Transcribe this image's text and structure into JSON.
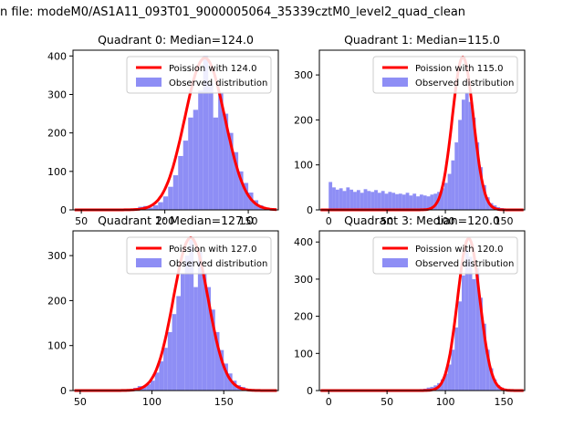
{
  "figure": {
    "title": "n file: modeM0/AS1A11_093T01_9000005064_35339cztM0_level2_quad_clean"
  },
  "colors": {
    "hist": "#8e8ef5",
    "curve": "#ff0000",
    "legend_border": "#cccccc",
    "axes": "#000000"
  },
  "chart_data": [
    {
      "type": "histogram",
      "title": "Quadrant 0: Median=124.0",
      "median": 124.0,
      "legend": [
        "Poission with 124.0",
        "Observed distribution"
      ],
      "xlim": [
        45,
        168
      ],
      "ylim": [
        0,
        415
      ],
      "xticks": [
        50,
        100,
        150
      ],
      "yticks": [
        0,
        100,
        200,
        300,
        400
      ],
      "bins_start": 57,
      "bin_width": 3,
      "counts": [
        0,
        2,
        0,
        2,
        1,
        2,
        3,
        2,
        4,
        8,
        10,
        6,
        12,
        20,
        35,
        60,
        90,
        140,
        180,
        240,
        260,
        310,
        400,
        330,
        240,
        305,
        250,
        200,
        150,
        100,
        70,
        45,
        25,
        12,
        6,
        3
      ],
      "curve": {
        "mean": 124,
        "amplitude": 395,
        "sigma": 12
      }
    },
    {
      "type": "histogram",
      "title": "Quadrant 1: Median=115.0",
      "median": 115.0,
      "legend": [
        "Poission with 115.0",
        "Observed distribution"
      ],
      "xlim": [
        -8,
        168
      ],
      "ylim": [
        0,
        355
      ],
      "xticks": [
        0,
        50,
        100,
        150
      ],
      "yticks": [
        0,
        100,
        200,
        300
      ],
      "bins_start": 0,
      "bin_width": 3,
      "counts": [
        62,
        50,
        45,
        48,
        42,
        50,
        45,
        40,
        44,
        38,
        46,
        42,
        40,
        44,
        38,
        42,
        36,
        40,
        38,
        35,
        36,
        34,
        38,
        32,
        36,
        30,
        34,
        32,
        30,
        34,
        36,
        40,
        48,
        60,
        80,
        110,
        150,
        200,
        245,
        260,
        240,
        205,
        150,
        95,
        55,
        28,
        15,
        10,
        6,
        4,
        3,
        2,
        1,
        1
      ],
      "curve": {
        "mean": 115,
        "amplitude": 340,
        "sigma": 9
      }
    },
    {
      "type": "histogram",
      "title": "Quadrant 2: Median=127.0",
      "median": 127.0,
      "legend": [
        "Poission with 127.0",
        "Observed distribution"
      ],
      "xlim": [
        45,
        188
      ],
      "ylim": [
        0,
        355
      ],
      "xticks": [
        50,
        100,
        150
      ],
      "yticks": [
        0,
        100,
        200,
        300
      ],
      "bins_start": 57,
      "bin_width": 3,
      "counts": [
        1,
        0,
        1,
        2,
        1,
        2,
        1,
        2,
        3,
        2,
        6,
        10,
        8,
        14,
        22,
        40,
        65,
        95,
        130,
        170,
        210,
        260,
        300,
        335,
        230,
        310,
        260,
        230,
        180,
        130,
        90,
        60,
        38,
        22,
        12,
        8,
        4,
        3,
        2,
        1,
        1
      ],
      "curve": {
        "mean": 127,
        "amplitude": 340,
        "sigma": 12
      }
    },
    {
      "type": "histogram",
      "title": "Quadrant 3: Median=120.0",
      "median": 120.0,
      "legend": [
        "Poission with 120.0",
        "Observed distribution"
      ],
      "xlim": [
        -8,
        168
      ],
      "ylim": [
        0,
        430
      ],
      "xticks": [
        0,
        50,
        100,
        150
      ],
      "yticks": [
        0,
        100,
        200,
        300,
        400
      ],
      "bins_start": 57,
      "bin_width": 3,
      "counts": [
        1,
        2,
        1,
        3,
        2,
        2,
        3,
        4,
        5,
        8,
        10,
        14,
        20,
        30,
        45,
        70,
        110,
        170,
        240,
        310,
        380,
        360,
        300,
        330,
        250,
        180,
        110,
        60,
        30,
        15,
        8,
        4,
        2,
        1
      ],
      "curve": {
        "mean": 120,
        "amplitude": 410,
        "sigma": 9.5
      }
    }
  ]
}
